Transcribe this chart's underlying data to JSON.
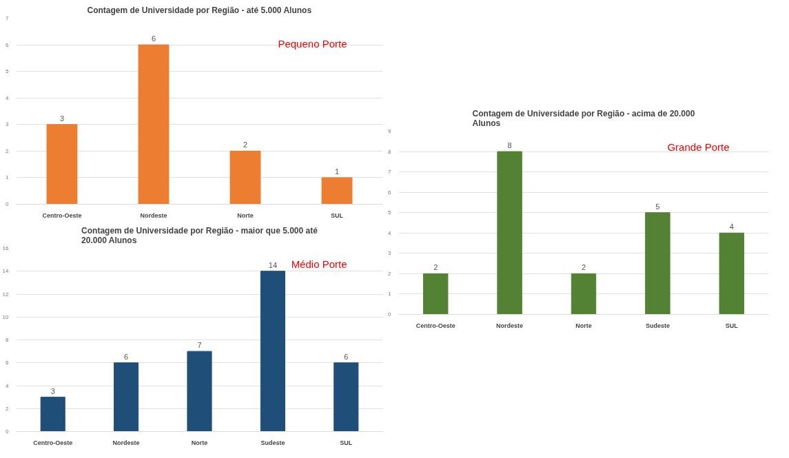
{
  "chart_data": [
    {
      "type": "bar",
      "title": "Contagem de Universidade por Região - até 5.000 Alunos",
      "categories": [
        "Centro-Oeste",
        "Nordeste",
        "Norte",
        "SUL"
      ],
      "values": [
        3,
        6,
        2,
        1
      ],
      "color": "#ed7d31",
      "ylim": [
        0,
        7
      ],
      "yticks": [
        0,
        1,
        2,
        3,
        4,
        5,
        6,
        7
      ],
      "grid": "y",
      "data_labels": true,
      "annotations": [
        "Pequeno Porte"
      ]
    },
    {
      "type": "bar",
      "title": "Contagem de Universidade por Região - maior que 5.000 até 20.000 Alunos",
      "categories": [
        "Centro-Oeste",
        "Nordeste",
        "Norte",
        "Sudeste",
        "SUL"
      ],
      "values": [
        3,
        6,
        7,
        14,
        6
      ],
      "color": "#1f4e79",
      "ylim": [
        0,
        16
      ],
      "yticks": [
        0,
        2,
        4,
        6,
        8,
        10,
        12,
        14,
        16
      ],
      "grid": "y",
      "data_labels": true,
      "annotations": [
        "Médio Porte"
      ]
    },
    {
      "type": "bar",
      "title": "Contagem de Universidade por Região - acima de 20.000 Alunos",
      "categories": [
        "Centro-Oeste",
        "Nordeste",
        "Norte",
        "Sudeste",
        "SUL"
      ],
      "values": [
        2,
        8,
        2,
        5,
        4
      ],
      "color": "#548235",
      "ylim": [
        0,
        9
      ],
      "yticks": [
        0,
        1,
        2,
        3,
        4,
        5,
        6,
        7,
        8,
        9
      ],
      "grid": "y",
      "data_labels": true,
      "annotations": [
        "Grande Porte"
      ]
    }
  ]
}
